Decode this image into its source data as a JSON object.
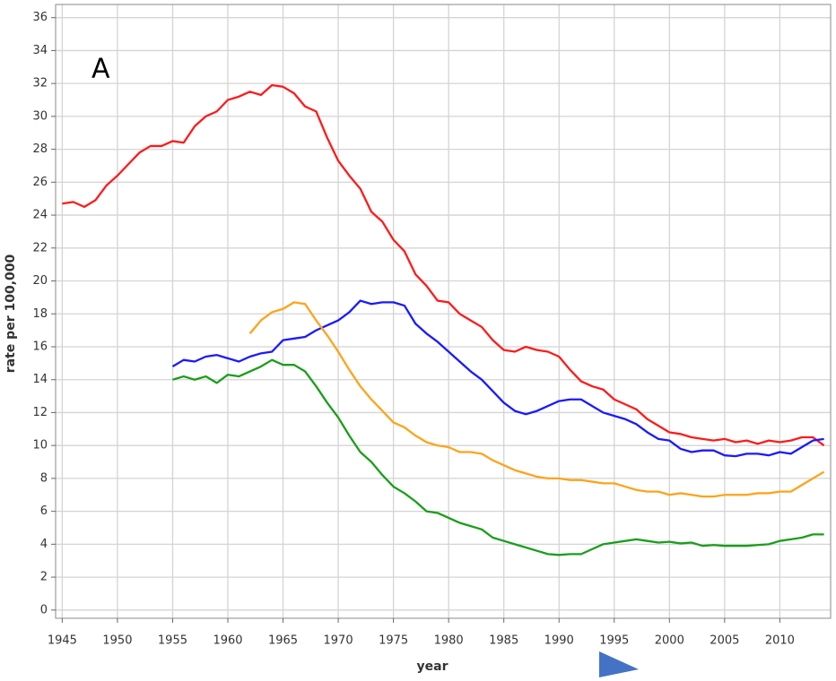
{
  "chart_data": {
    "type": "line",
    "annotation": "A",
    "x_label": "year",
    "y_label": "rate per 100,000",
    "x": [
      1945,
      1946,
      1947,
      1948,
      1949,
      1950,
      1951,
      1952,
      1953,
      1954,
      1955,
      1956,
      1957,
      1958,
      1959,
      1960,
      1961,
      1962,
      1963,
      1964,
      1965,
      1966,
      1967,
      1968,
      1969,
      1970,
      1971,
      1972,
      1973,
      1974,
      1975,
      1976,
      1977,
      1978,
      1979,
      1980,
      1981,
      1982,
      1983,
      1984,
      1985,
      1986,
      1987,
      1988,
      1989,
      1990,
      1991,
      1992,
      1993,
      1994,
      1995,
      1996,
      1997,
      1998,
      1999,
      2000,
      2001,
      2002,
      2003,
      2004,
      2005,
      2006,
      2007,
      2008,
      2009,
      2010,
      2011,
      2012,
      2013,
      2014
    ],
    "series": [
      {
        "color": "#ff1a1a",
        "values": [
          24.7,
          24.8,
          24.5,
          24.9,
          25.8,
          26.4,
          27.1,
          27.8,
          28.2,
          28.2,
          28.5,
          28.4,
          29.4,
          30.0,
          30.3,
          31.0,
          31.2,
          31.5,
          31.3,
          31.9,
          31.8,
          31.4,
          30.6,
          30.3,
          28.7,
          27.3,
          26.4,
          25.6,
          24.2,
          23.6,
          22.5,
          21.8,
          20.4,
          19.7,
          18.8,
          18.7,
          18.0,
          17.6,
          17.2,
          16.4,
          15.8,
          15.7,
          16.0,
          15.8,
          15.7,
          15.4,
          14.6,
          13.9,
          13.6,
          13.4,
          12.8,
          12.5,
          12.2,
          11.6,
          11.2,
          10.8,
          10.7,
          10.5,
          10.4,
          10.3,
          10.4,
          10.2,
          10.3,
          10.1,
          10.3,
          10.2,
          10.3,
          10.5,
          10.5,
          10.0
        ]
      },
      {
        "color": "#1a1aff",
        "values": [
          null,
          null,
          null,
          null,
          null,
          null,
          null,
          null,
          null,
          null,
          14.8,
          15.2,
          15.1,
          15.4,
          15.5,
          15.3,
          15.1,
          15.4,
          15.6,
          15.7,
          16.4,
          16.5,
          16.6,
          17.0,
          17.3,
          17.6,
          18.1,
          18.8,
          18.6,
          18.7,
          18.7,
          18.5,
          17.4,
          16.8,
          16.3,
          15.7,
          15.1,
          14.5,
          14.0,
          13.3,
          12.6,
          12.1,
          11.9,
          12.1,
          12.4,
          12.7,
          12.8,
          12.8,
          12.4,
          12.0,
          11.8,
          11.6,
          11.3,
          10.8,
          10.4,
          10.3,
          9.8,
          9.6,
          9.7,
          9.7,
          9.4,
          9.35,
          9.5,
          9.5,
          9.4,
          9.6,
          9.5,
          9.9,
          10.3,
          10.4
        ]
      },
      {
        "color": "#ffa31a",
        "values": [
          null,
          null,
          null,
          null,
          null,
          null,
          null,
          null,
          null,
          null,
          null,
          null,
          null,
          null,
          null,
          null,
          null,
          16.8,
          17.6,
          18.1,
          18.3,
          18.7,
          18.6,
          17.6,
          16.7,
          15.7,
          14.6,
          13.6,
          12.8,
          12.1,
          11.4,
          11.1,
          10.6,
          10.2,
          10.0,
          9.9,
          9.6,
          9.6,
          9.5,
          9.1,
          8.8,
          8.5,
          8.3,
          8.1,
          8.0,
          8.0,
          7.9,
          7.9,
          7.8,
          7.7,
          7.7,
          7.5,
          7.3,
          7.2,
          7.2,
          7.0,
          7.1,
          7.0,
          6.9,
          6.9,
          7.0,
          7.0,
          7.0,
          7.1,
          7.1,
          7.2,
          7.2,
          7.6,
          8.0,
          8.4
        ]
      },
      {
        "color": "#1a9e1a",
        "values": [
          null,
          null,
          null,
          null,
          null,
          null,
          null,
          null,
          null,
          null,
          14.0,
          14.2,
          14.0,
          14.2,
          13.8,
          14.3,
          14.2,
          14.5,
          14.8,
          15.2,
          14.9,
          14.9,
          14.5,
          13.6,
          12.6,
          11.7,
          10.6,
          9.6,
          9.0,
          8.2,
          7.5,
          7.1,
          6.6,
          6.0,
          5.9,
          5.6,
          5.3,
          5.1,
          4.9,
          4.4,
          4.2,
          4.0,
          3.8,
          3.6,
          3.4,
          3.35,
          3.4,
          3.4,
          3.7,
          4.0,
          4.1,
          4.2,
          4.3,
          4.2,
          4.1,
          4.15,
          4.05,
          4.1,
          3.9,
          3.95,
          3.9,
          3.9,
          3.9,
          3.95,
          4.0,
          4.2,
          4.3,
          4.4,
          4.6,
          4.6
        ]
      }
    ],
    "xlim": [
      1944.4,
      2014.6
    ],
    "xticks": [
      1945,
      1950,
      1955,
      1960,
      1965,
      1970,
      1975,
      1980,
      1985,
      1990,
      1995,
      2000,
      2005,
      2010
    ],
    "ylim": [
      -0.5,
      36.8
    ],
    "yticks": [
      0,
      2,
      4,
      6,
      8,
      10,
      12,
      14,
      16,
      18,
      20,
      22,
      24,
      26,
      28,
      30,
      32,
      34,
      36
    ],
    "grid": true
  }
}
